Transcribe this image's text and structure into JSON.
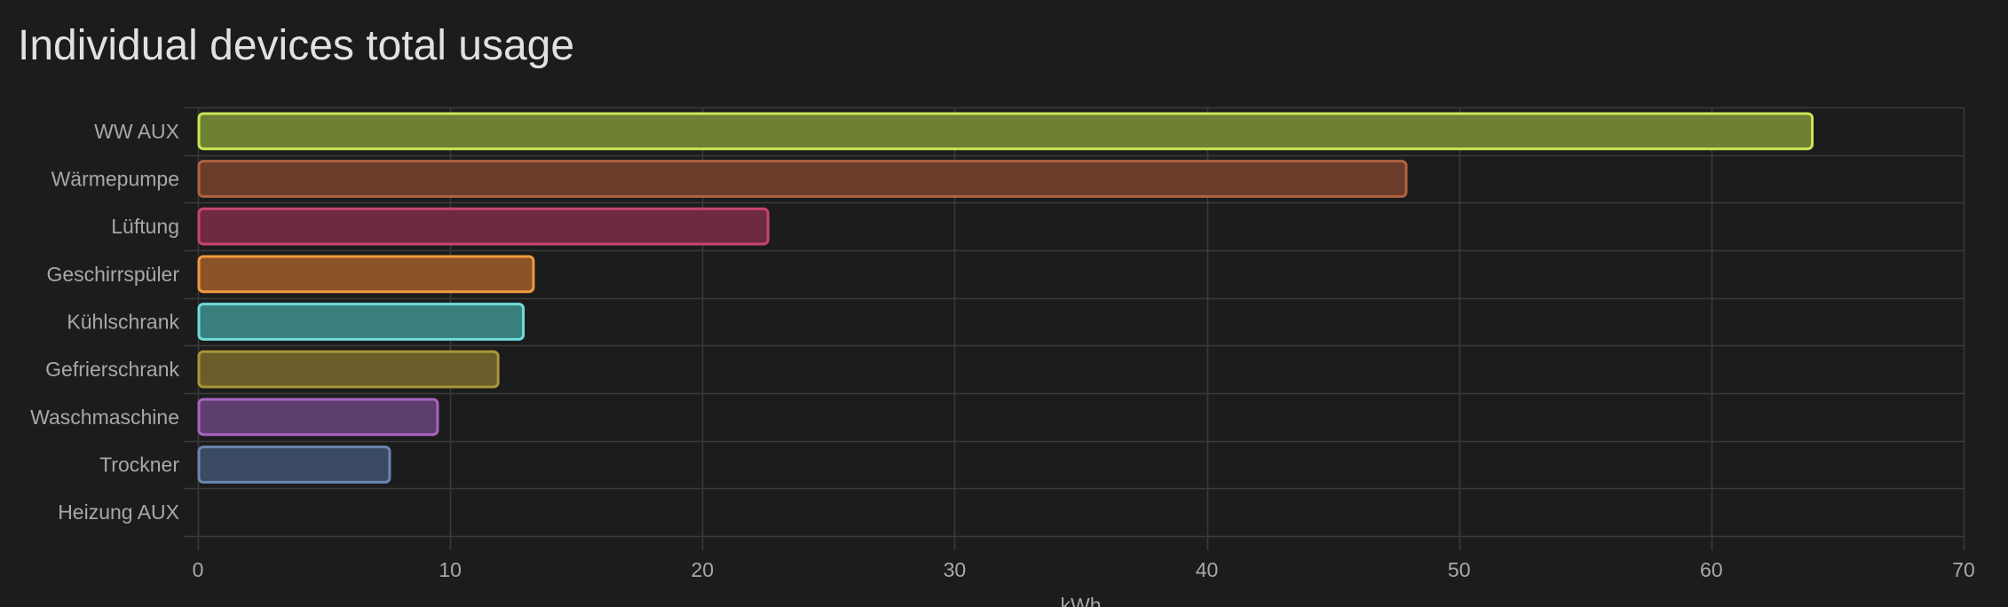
{
  "card": {
    "title": "Individual devices total usage"
  },
  "chart_data": {
    "type": "bar",
    "orientation": "horizontal",
    "title": "Individual devices total usage",
    "xlabel": "kWh",
    "ylabel": "",
    "xlim": [
      0,
      70
    ],
    "x_ticks": [
      0,
      10,
      20,
      30,
      40,
      50,
      60,
      70
    ],
    "grid": true,
    "categories": [
      "WW AUX",
      "Wärmepumpe",
      "Lüftung",
      "Geschirrspüler",
      "Kühlschrank",
      "Gefrierschrank",
      "Waschmaschine",
      "Trockner",
      "Heizung AUX"
    ],
    "values": [
      64.0,
      47.9,
      22.6,
      13.3,
      12.9,
      11.9,
      9.5,
      7.6,
      0
    ],
    "colors": [
      {
        "fill": "#6d8033",
        "stroke": "#c9e557"
      },
      {
        "fill": "#6a3d2b",
        "stroke": "#b0623e"
      },
      {
        "fill": "#6e2a40",
        "stroke": "#c8456e"
      },
      {
        "fill": "#8a5428",
        "stroke": "#f29a3c"
      },
      {
        "fill": "#3a7f7d",
        "stroke": "#6fdcd9"
      },
      {
        "fill": "#6b5d2a",
        "stroke": "#a8963a"
      },
      {
        "fill": "#5e3e6e",
        "stroke": "#a864c0"
      },
      {
        "fill": "#3a4a62",
        "stroke": "#6a86b0"
      },
      {
        "fill": "#3a3a3a",
        "stroke": "#777777"
      }
    ],
    "grid_color": "#3a3a3a",
    "background": "#1c1c1c"
  }
}
